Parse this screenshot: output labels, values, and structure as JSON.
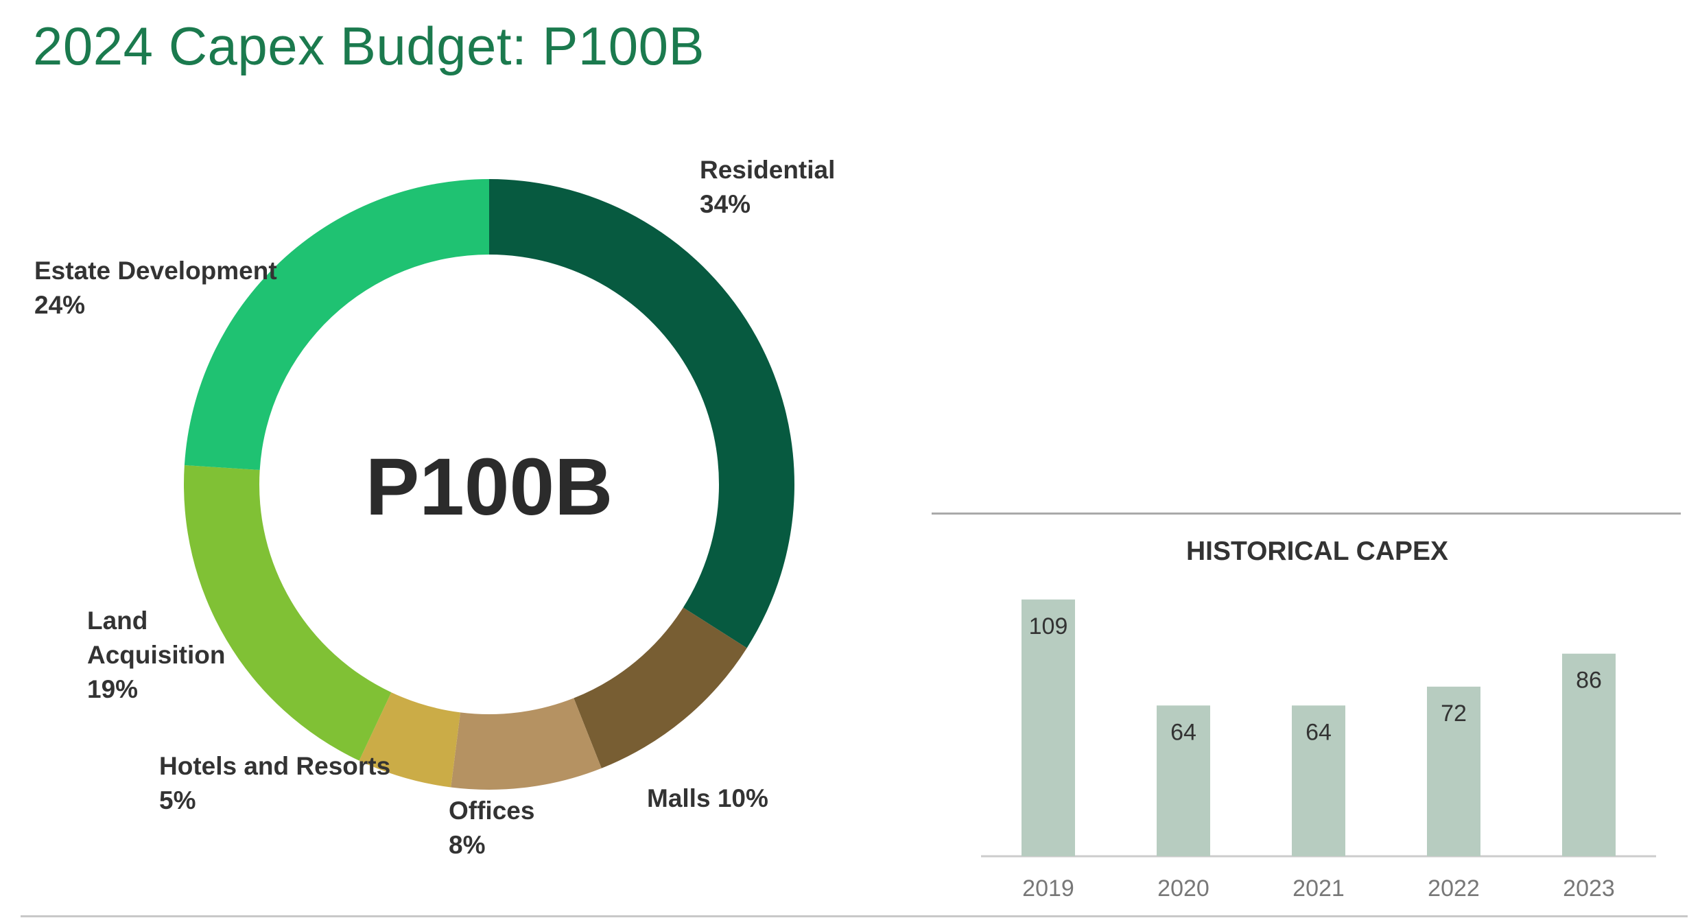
{
  "title": "2024 Capex Budget: P100B",
  "colors": {
    "title": "#1b7a4e",
    "bar": "#b7ccc0",
    "segments": [
      "#075a40",
      "#785e33",
      "#b59262",
      "#cbac47",
      "#80c135",
      "#1fc272"
    ]
  },
  "chart_data": [
    {
      "type": "pie",
      "variant": "donut",
      "center_label": "P100B",
      "unit": "%",
      "slices": [
        {
          "label": "Residential",
          "pct_label": "34%",
          "value": 34
        },
        {
          "label": "Malls",
          "pct_label": "10%",
          "value": 10
        },
        {
          "label": "Offices",
          "pct_label": "8%",
          "value": 8
        },
        {
          "label": "Hotels and Resorts",
          "pct_label": "5%",
          "value": 5
        },
        {
          "label": "Land",
          "label_line2": "Acquisition",
          "pct_label": "19%",
          "value": 19
        },
        {
          "label": "Estate Development",
          "pct_label": "24%",
          "value": 24
        }
      ]
    },
    {
      "type": "bar",
      "title": "HISTORICAL CAPEX",
      "categories": [
        "2019",
        "2020",
        "2021",
        "2022",
        "2023"
      ],
      "values": [
        109,
        64,
        64,
        72,
        86
      ],
      "ylim": [
        0,
        120
      ],
      "grid": false
    }
  ]
}
